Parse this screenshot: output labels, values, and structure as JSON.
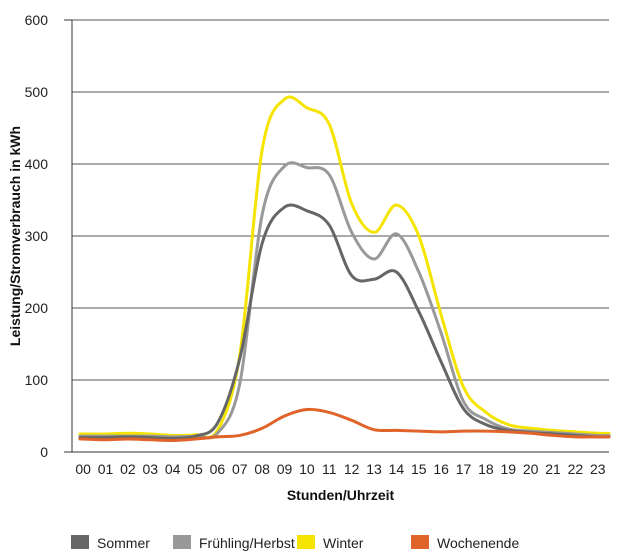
{
  "chart_data": {
    "type": "line",
    "title": "",
    "xlabel": "Stunden/Uhrzeit",
    "ylabel": "Leistung/Stromverbrauch in kWh",
    "ylim": [
      0,
      600
    ],
    "yticks": [
      0,
      100,
      200,
      300,
      400,
      500,
      600
    ],
    "categories": [
      "00",
      "01",
      "02",
      "03",
      "04",
      "05",
      "06",
      "07",
      "08",
      "09",
      "10",
      "11",
      "12",
      "13",
      "14",
      "15",
      "16",
      "17",
      "18",
      "19",
      "20",
      "21",
      "22",
      "23"
    ],
    "grid": true,
    "legend_position": "bottom",
    "series": [
      {
        "name": "Sommer",
        "color": "#666666",
        "values": [
          20,
          20,
          21,
          20,
          19,
          22,
          40,
          130,
          290,
          340,
          335,
          315,
          245,
          240,
          250,
          195,
          125,
          60,
          38,
          30,
          27,
          25,
          23,
          21
        ]
      },
      {
        "name": "Frühling/Herbst",
        "color": "#999999",
        "values": [
          22,
          22,
          22,
          22,
          21,
          22,
          26,
          95,
          330,
          397,
          395,
          385,
          305,
          268,
          303,
          250,
          165,
          70,
          45,
          32,
          29,
          27,
          25,
          23
        ]
      },
      {
        "name": "Winter",
        "color": "#F5E400",
        "values": [
          25,
          25,
          26,
          25,
          23,
          24,
          30,
          135,
          420,
          490,
          478,
          455,
          345,
          305,
          343,
          300,
          190,
          90,
          55,
          38,
          33,
          30,
          28,
          26
        ]
      },
      {
        "name": "Wochenende",
        "color": "#E0642A",
        "values": [
          18,
          17,
          18,
          17,
          16,
          18,
          21,
          23,
          33,
          50,
          59,
          55,
          44,
          31,
          30,
          29,
          28,
          29,
          29,
          28,
          26,
          23,
          21,
          21
        ]
      }
    ]
  }
}
